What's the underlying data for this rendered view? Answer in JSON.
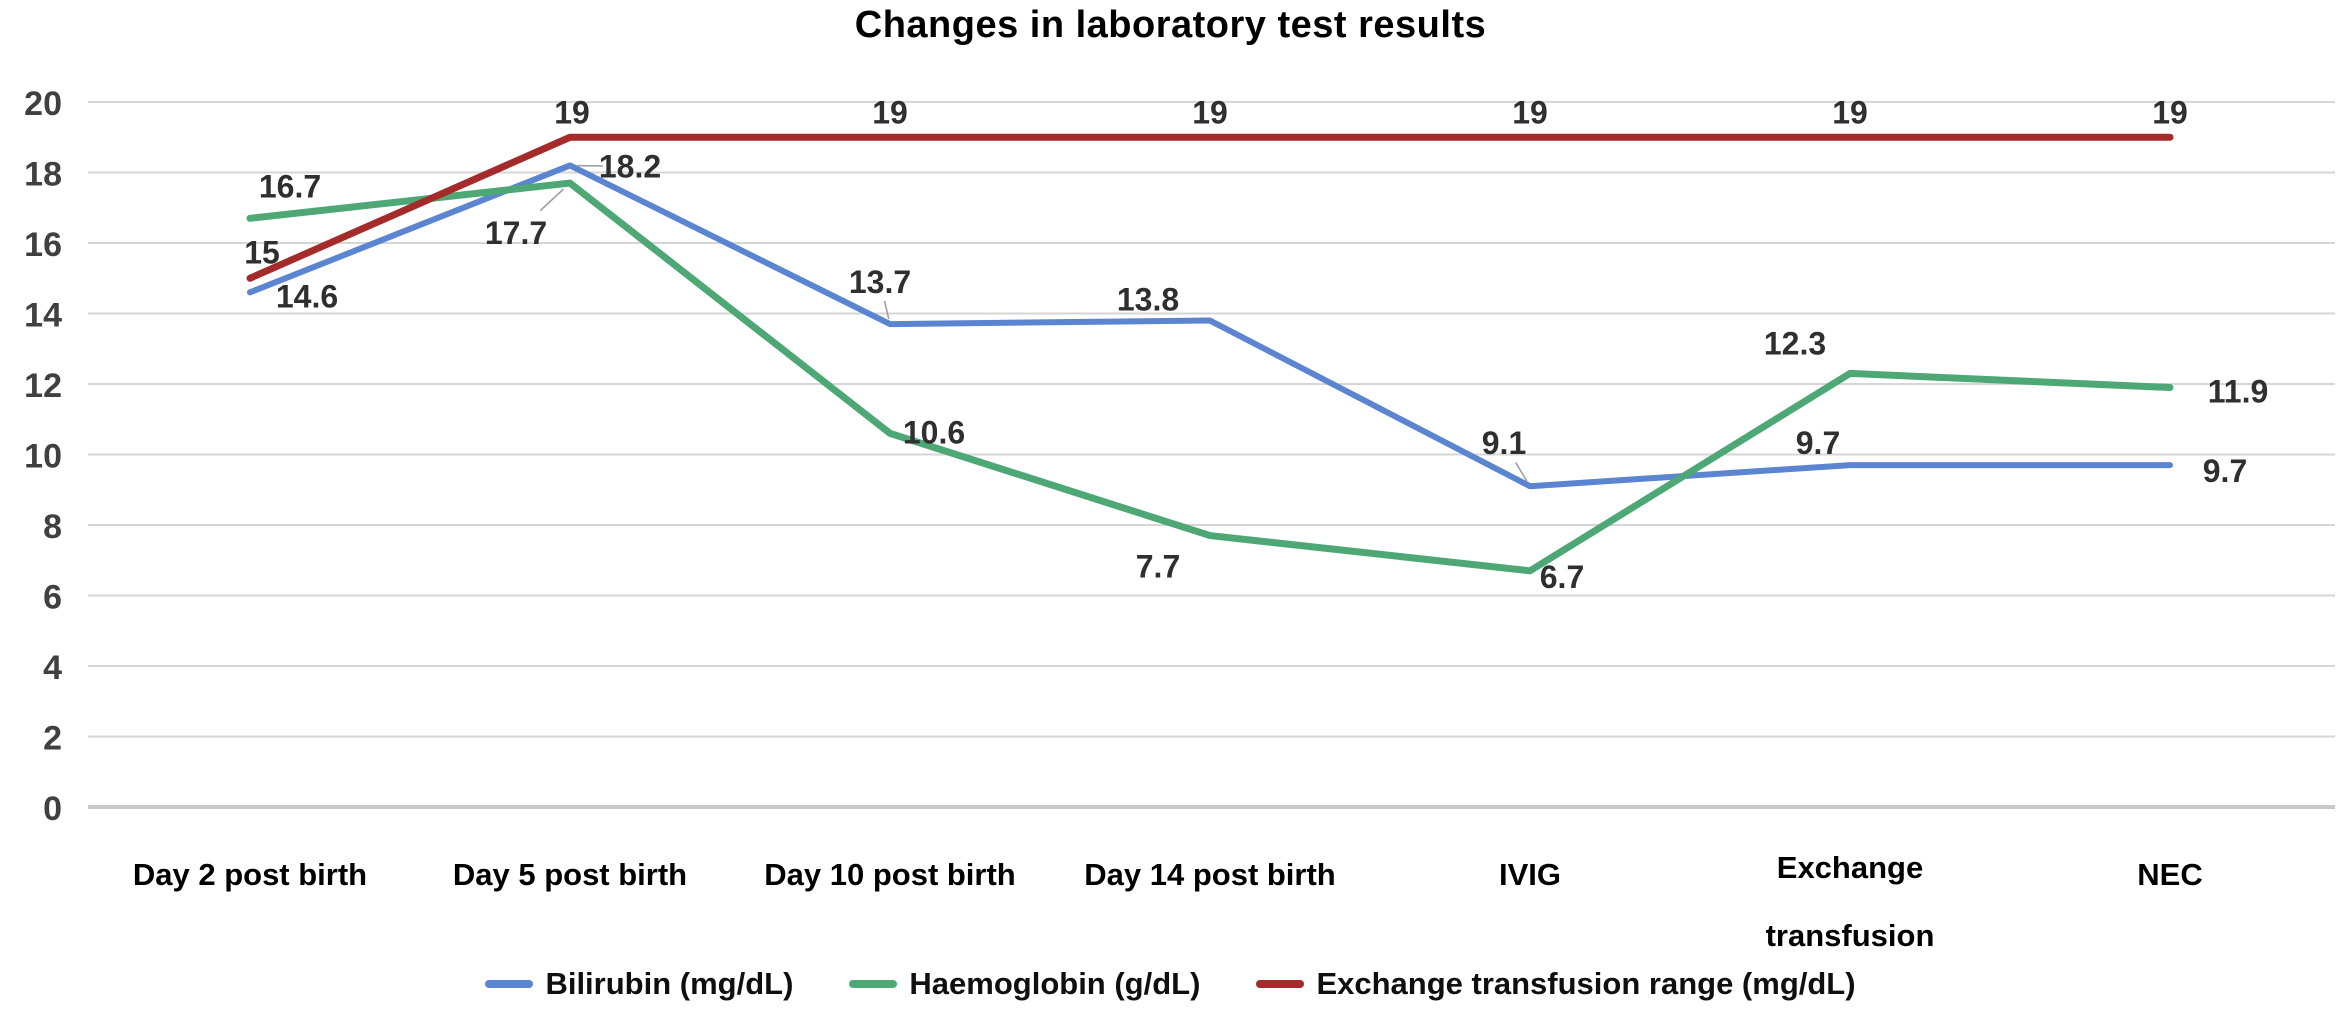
{
  "title": "Changes in laboratory test results",
  "chart_data": {
    "type": "line",
    "title": "Changes in laboratory test results",
    "categories": [
      "Day 2 post birth",
      "Day 5 post birth",
      "Day 10 post birth",
      "Day 14 post birth",
      "IVIG",
      "Exchange transfusion",
      "NEC"
    ],
    "series": [
      {
        "name": "Bilirubin (mg/dL)",
        "color": "#5B84D1",
        "stroke_width": 6,
        "values": [
          14.6,
          18.2,
          13.7,
          13.8,
          9.1,
          9.7,
          9.7
        ],
        "labels": [
          "14.6",
          "18.2",
          "13.7",
          "13.8",
          "9.1",
          "9.7",
          "9.7"
        ],
        "label_offsets": [
          [
            57,
            4
          ],
          [
            60,
            1
          ],
          [
            -10,
            -42
          ],
          [
            -62,
            -21
          ],
          [
            -26,
            -43
          ],
          [
            -32,
            -22
          ],
          [
            55,
            6
          ]
        ]
      },
      {
        "name": "Haemoglobin (g/dL)",
        "color": "#4EA876",
        "stroke_width": 7,
        "values": [
          16.7,
          17.7,
          10.6,
          7.7,
          6.7,
          12.3,
          11.9
        ],
        "labels": [
          "16.7",
          "17.7",
          "10.6",
          "7.7",
          "6.7",
          "12.3",
          "11.9"
        ],
        "label_offsets": [
          [
            40,
            -32
          ],
          [
            -54,
            50
          ],
          [
            44,
            -1
          ],
          [
            -52,
            31
          ],
          [
            32,
            6
          ],
          [
            -55,
            -30
          ],
          [
            68,
            4
          ]
        ]
      },
      {
        "name": "Exchange transfusion range (mg/dL)",
        "color": "#A52A2A",
        "stroke_width": 7,
        "values": [
          15,
          19,
          19,
          19,
          19,
          19,
          19
        ],
        "labels": [
          "15",
          "19",
          "19",
          "19",
          "19",
          "19",
          "19"
        ],
        "label_offsets": [
          [
            12,
            -26
          ],
          [
            2,
            -25
          ],
          [
            0,
            -25
          ],
          [
            0,
            -25
          ],
          [
            0,
            -25
          ],
          [
            0,
            -25
          ],
          [
            0,
            -25
          ]
        ]
      }
    ],
    "y_axis": {
      "min": 0,
      "max": 20,
      "step": 2,
      "tick_labels": [
        "0",
        "2",
        "4",
        "6",
        "8",
        "10",
        "12",
        "14",
        "16",
        "18",
        "20"
      ]
    },
    "grid": true,
    "legend_position": "bottom",
    "leader_lines": [
      {
        "series": 0,
        "index": 1
      },
      {
        "series": 0,
        "index": 2
      },
      {
        "series": 0,
        "index": 4
      },
      {
        "series": 1,
        "index": 1
      }
    ],
    "colors": {
      "gridline": "#D6D6D6",
      "axis_line": "#C9C9C9",
      "value_label": "#2F2F2F",
      "y_tick_label": "#404040",
      "x_tick_label": "#000000",
      "leader": "#9B9B9B"
    }
  }
}
